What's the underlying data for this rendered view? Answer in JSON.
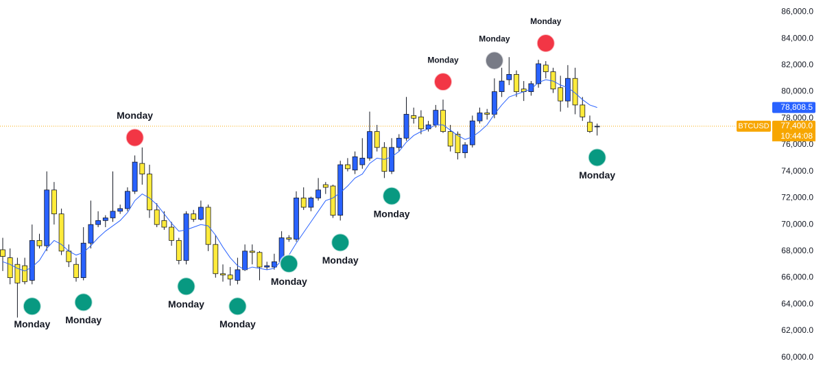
{
  "chart_data": {
    "type": "candlestick",
    "symbol": "BTCUSD",
    "countdown": "10:44:08",
    "up_color": "#2962ff",
    "down_color": "#ffeb3b",
    "open": [
      68100,
      67500,
      67000,
      66900,
      65800,
      68800,
      68400,
      72600,
      70800,
      68000,
      67000,
      66000,
      68600,
      70000,
      70300,
      70500,
      71000,
      71200,
      72500,
      74600,
      73800,
      71100,
      70300,
      69800,
      68800,
      67300,
      70800,
      70400,
      71300,
      68500,
      66300,
      66200,
      65800,
      66600,
      68000,
      67900,
      66800,
      66800,
      67200,
      69000,
      68900,
      72000,
      71300,
      72000,
      73000,
      72900,
      70700,
      74500,
      74100,
      74500,
      75000,
      77000,
      75800,
      74000,
      75800,
      76500,
      78200,
      78100,
      77200,
      77500,
      78600,
      77000,
      76800,
      75400,
      76000,
      77800,
      78400,
      78300,
      80000,
      80900,
      81300,
      80200,
      80000,
      80600,
      82000,
      81500,
      80300,
      79300,
      81000,
      79000,
      77700,
      77400
    ],
    "high": [
      69000,
      68200,
      67500,
      67500,
      70000,
      69300,
      74000,
      73200,
      71200,
      68500,
      67500,
      69800,
      71800,
      71000,
      70700,
      74000,
      71500,
      72800,
      75200,
      75800,
      74500,
      71600,
      71000,
      70200,
      69000,
      71000,
      71100,
      71800,
      71500,
      69200,
      67000,
      66800,
      67500,
      68500,
      68500,
      68000,
      67200,
      67800,
      69500,
      69200,
      72500,
      72800,
      72100,
      73500,
      73200,
      73000,
      74800,
      75000,
      75500,
      76500,
      78500,
      77500,
      76200,
      76500,
      76800,
      79600,
      78800,
      78600,
      77800,
      79000,
      79400,
      77500,
      77000,
      76200,
      78200,
      78800,
      78700,
      81000,
      81800,
      82600,
      81600,
      80800,
      80800,
      82400,
      82300,
      81800,
      81200,
      82000,
      81800,
      79600,
      78200,
      77600
    ],
    "low": [
      66500,
      65500,
      63000,
      65500,
      65500,
      68200,
      68000,
      70000,
      67700,
      66800,
      65700,
      65800,
      68200,
      69800,
      69800,
      70200,
      70800,
      71000,
      72300,
      73000,
      70500,
      69800,
      69600,
      68400,
      67000,
      67000,
      70200,
      70300,
      68000,
      66000,
      65700,
      65400,
      65500,
      66500,
      67000,
      65800,
      66600,
      66600,
      67000,
      68700,
      68700,
      71100,
      71000,
      71800,
      72300,
      70500,
      70300,
      74000,
      73800,
      74200,
      74800,
      75500,
      73500,
      73800,
      75500,
      76300,
      77600,
      76800,
      77000,
      77300,
      76900,
      75500,
      74900,
      75000,
      75800,
      77600,
      77900,
      78000,
      79600,
      80500,
      79600,
      79300,
      79700,
      80300,
      81000,
      79900,
      78500,
      78800,
      78300,
      77800,
      76900,
      76700
    ],
    "close": [
      67600,
      66000,
      65600,
      65700,
      68800,
      68400,
      72600,
      70800,
      68000,
      67200,
      66000,
      68600,
      70000,
      70300,
      70500,
      71000,
      71200,
      72500,
      74700,
      73800,
      71100,
      70000,
      69800,
      68800,
      67300,
      70800,
      70400,
      71300,
      68500,
      66300,
      66200,
      65900,
      66600,
      68000,
      67900,
      66800,
      66900,
      67200,
      69000,
      68900,
      72000,
      71300,
      72000,
      72600,
      72800,
      70700,
      74500,
      74200,
      75100,
      75000,
      77000,
      75800,
      74000,
      75800,
      76500,
      78300,
      78000,
      77200,
      77500,
      78600,
      77000,
      75900,
      75400,
      76000,
      77800,
      78400,
      78300,
      80000,
      80800,
      81300,
      80000,
      80000,
      80600,
      82100,
      81500,
      80200,
      79300,
      81000,
      79000,
      78100,
      77000,
      77400
    ],
    "close_last_label": "77,400.0",
    "ma": {
      "color": "#2962ff",
      "last_label": "78,808.5",
      "values": [
        67200,
        67000,
        66700,
        66500,
        66800,
        67300,
        68200,
        68800,
        68500,
        68000,
        67700,
        67900,
        68400,
        69000,
        69500,
        69900,
        70300,
        70900,
        71800,
        72300,
        72000,
        71500,
        70800,
        70100,
        69500,
        69600,
        69800,
        70000,
        69900,
        69200,
        68300,
        67500,
        66900,
        66600,
        66800,
        66700,
        66600,
        66700,
        67300,
        67700,
        68600,
        69400,
        70200,
        71000,
        71800,
        72000,
        72400,
        72900,
        73500,
        73800,
        74600,
        75000,
        74900,
        75100,
        75500,
        76200,
        76700,
        77000,
        77200,
        77500,
        77500,
        77100,
        76700,
        76400,
        76600,
        77000,
        77500,
        78300,
        79000,
        79600,
        79800,
        80000,
        80200,
        80700,
        80900,
        80800,
        80500,
        80300,
        79900,
        79400,
        79000,
        78808.5
      ]
    },
    "markers": [
      {
        "label": "Monday",
        "color": "#089981",
        "candle": 4,
        "side": "below"
      },
      {
        "label": "Monday",
        "color": "#089981",
        "candle": 11,
        "side": "below"
      },
      {
        "label": "Monday",
        "color": "#f23645",
        "candle": 18,
        "side": "above"
      },
      {
        "label": "Monday",
        "color": "#089981",
        "candle": 25,
        "side": "below"
      },
      {
        "label": "Monday",
        "color": "#089981",
        "candle": 32,
        "side": "below"
      },
      {
        "label": "Monday",
        "color": "#089981",
        "candle": 39,
        "side": "below"
      },
      {
        "label": "Monday",
        "color": "#089981",
        "candle": 46,
        "side": "below"
      },
      {
        "label": "Monday",
        "color": "#089981",
        "candle": 53,
        "side": "below"
      },
      {
        "label": "Monday",
        "color": "#f23645",
        "candle": 60,
        "side": "above"
      },
      {
        "label": "Monday",
        "color": "#787b86",
        "candle": 67,
        "side": "above"
      },
      {
        "label": "Monday",
        "color": "#f23645",
        "candle": 74,
        "side": "above"
      },
      {
        "label": "Monday",
        "color": "#089981",
        "candle": 81,
        "side": "below"
      }
    ],
    "ylim": [
      58900,
      86900
    ],
    "yticks": [
      {
        "value": 60000,
        "label": "60,000.0"
      },
      {
        "value": 62000,
        "label": "62,000.0"
      },
      {
        "value": 64000,
        "label": "64,000.0"
      },
      {
        "value": 66000,
        "label": "66,000.0"
      },
      {
        "value": 68000,
        "label": "68,000.0"
      },
      {
        "value": 70000,
        "label": "70,000.0"
      },
      {
        "value": 72000,
        "label": "72,000.0"
      },
      {
        "value": 74000,
        "label": "74,000.0"
      },
      {
        "value": 76000,
        "label": "76,000.0"
      },
      {
        "value": 78000,
        "label": "78,000.0"
      },
      {
        "value": 80000,
        "label": "80,000.0"
      },
      {
        "value": 82000,
        "label": "82,000.0"
      },
      {
        "value": 84000,
        "label": "84,000.0"
      },
      {
        "value": 86000,
        "label": "86,000.0"
      }
    ]
  }
}
